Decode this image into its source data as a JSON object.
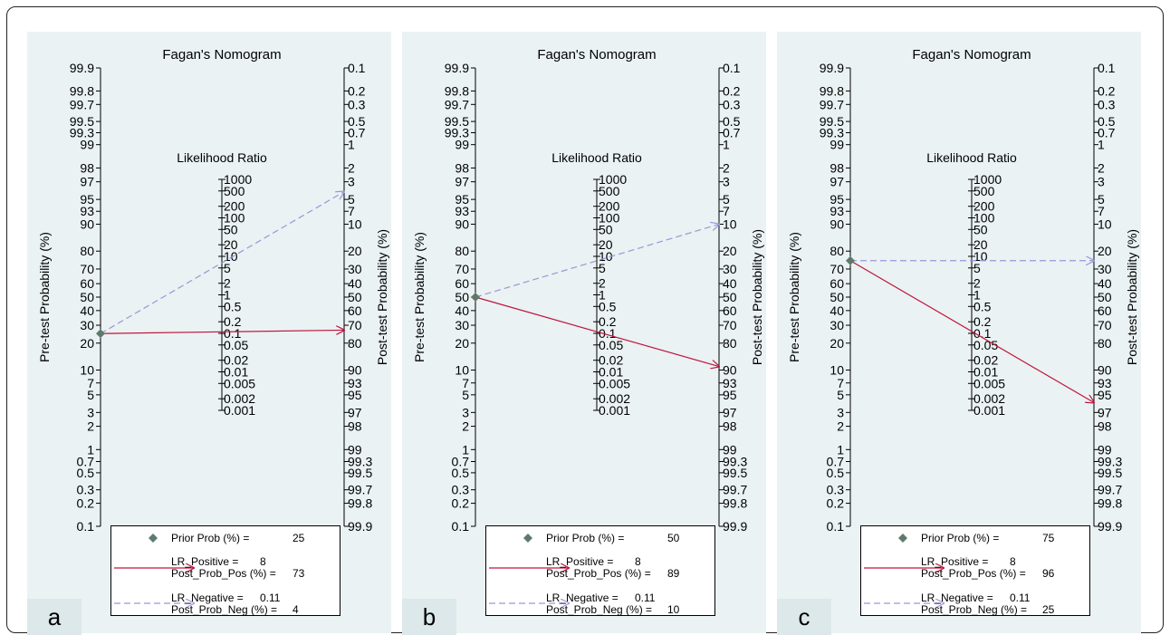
{
  "colors": {
    "background": "#eaf2f3",
    "letter_box": "#dde8eb",
    "positive_line": "#c0143c",
    "negative_line": "#9a96d8",
    "prior_marker": "#5f7a6c",
    "axis": "#000000"
  },
  "panels": [
    {
      "letter": "a",
      "title": "Fagan's Nomogram",
      "legend": {
        "prior_label": "Prior Prob (%) =",
        "prior_value": "25",
        "lr_pos_label": "LR_Positive =",
        "lr_pos_value": "8",
        "post_pos_label": "Post_Prob_Pos (%) =",
        "post_pos_value": "73",
        "lr_neg_label": "LR_Negative =",
        "lr_neg_value": "0.11",
        "post_neg_label": "Post_Prob_Neg (%) =",
        "post_neg_value": "4"
      }
    },
    {
      "letter": "b",
      "title": "Fagan's Nomogram",
      "legend": {
        "prior_label": "Prior Prob (%) =",
        "prior_value": "50",
        "lr_pos_label": "LR_Positive =",
        "lr_pos_value": "8",
        "post_pos_label": "Post_Prob_Pos (%) =",
        "post_pos_value": "89",
        "lr_neg_label": "LR_Negative =",
        "lr_neg_value": "0.11",
        "post_neg_label": "Post_Prob_Neg (%) =",
        "post_neg_value": "10"
      }
    },
    {
      "letter": "c",
      "title": "Fagan's Nomogram",
      "legend": {
        "prior_label": "Prior Prob (%) =",
        "prior_value": "75",
        "lr_pos_label": "LR_Positive =",
        "lr_pos_value": "8",
        "post_pos_label": "Post_Prob_Pos (%) =",
        "post_pos_value": "96",
        "lr_neg_label": "LR_Negative =",
        "lr_neg_value": "0.11",
        "post_neg_label": "Post_Prob_Neg (%) =",
        "post_neg_value": "25"
      }
    }
  ],
  "chart_data": [
    {
      "type": "line",
      "title": "Fagan's Nomogram",
      "pretest_axis_label": "Pre-test Probability (%)",
      "posttest_axis_label": "Post-test Probability (%)",
      "lr_axis_label": "Likelihood Ratio",
      "pretest_ticks": [
        "0.1",
        "0.2",
        "0.3",
        "0.5",
        "0.7",
        "1",
        "2",
        "3",
        "5",
        "7",
        "10",
        "20",
        "30",
        "40",
        "50",
        "60",
        "70",
        "80",
        "90",
        "93",
        "95",
        "97",
        "98",
        "99",
        "99.3",
        "99.5",
        "99.7",
        "99.8",
        "99.9"
      ],
      "posttest_ticks": [
        "99.9",
        "99.8",
        "99.7",
        "99.5",
        "99.3",
        "99",
        "98",
        "97",
        "95",
        "93",
        "90",
        "80",
        "70",
        "60",
        "50",
        "40",
        "30",
        "20",
        "10",
        "7",
        "5",
        "3",
        "2",
        "1",
        "0.7",
        "0.5",
        "0.3",
        "0.2",
        "0.1"
      ],
      "lr_ticks": [
        "1000",
        "500",
        "200",
        "100",
        "50",
        "20",
        "10",
        "5",
        "2",
        "1",
        "0.5",
        "0.2",
        "0.1",
        "0.05",
        "0.02",
        "0.01",
        "0.005",
        "0.002",
        "0.001"
      ],
      "prior_prob": 25,
      "lr_positive": 8,
      "post_prob_pos": 73,
      "lr_negative": 0.11,
      "post_prob_neg": 4
    },
    {
      "type": "line",
      "title": "Fagan's Nomogram",
      "pretest_axis_label": "Pre-test Probability (%)",
      "posttest_axis_label": "Post-test Probability (%)",
      "lr_axis_label": "Likelihood Ratio",
      "pretest_ticks": [
        "0.1",
        "0.2",
        "0.3",
        "0.5",
        "0.7",
        "1",
        "2",
        "3",
        "5",
        "7",
        "10",
        "20",
        "30",
        "40",
        "50",
        "60",
        "70",
        "80",
        "90",
        "93",
        "95",
        "97",
        "98",
        "99",
        "99.3",
        "99.5",
        "99.7",
        "99.8",
        "99.9"
      ],
      "posttest_ticks": [
        "99.9",
        "99.8",
        "99.7",
        "99.5",
        "99.3",
        "99",
        "98",
        "97",
        "95",
        "93",
        "90",
        "80",
        "70",
        "60",
        "50",
        "40",
        "30",
        "20",
        "10",
        "7",
        "5",
        "3",
        "2",
        "1",
        "0.7",
        "0.5",
        "0.3",
        "0.2",
        "0.1"
      ],
      "lr_ticks": [
        "1000",
        "500",
        "200",
        "100",
        "50",
        "20",
        "10",
        "5",
        "2",
        "1",
        "0.5",
        "0.2",
        "0.1",
        "0.05",
        "0.02",
        "0.01",
        "0.005",
        "0.002",
        "0.001"
      ],
      "prior_prob": 50,
      "lr_positive": 8,
      "post_prob_pos": 89,
      "lr_negative": 0.11,
      "post_prob_neg": 10
    },
    {
      "type": "line",
      "title": "Fagan's Nomogram",
      "pretest_axis_label": "Pre-test Probability (%)",
      "posttest_axis_label": "Post-test Probability (%)",
      "lr_axis_label": "Likelihood Ratio",
      "pretest_ticks": [
        "0.1",
        "0.2",
        "0.3",
        "0.5",
        "0.7",
        "1",
        "2",
        "3",
        "5",
        "7",
        "10",
        "20",
        "30",
        "40",
        "50",
        "60",
        "70",
        "80",
        "90",
        "93",
        "95",
        "97",
        "98",
        "99",
        "99.3",
        "99.5",
        "99.7",
        "99.8",
        "99.9"
      ],
      "posttest_ticks": [
        "99.9",
        "99.8",
        "99.7",
        "99.5",
        "99.3",
        "99",
        "98",
        "97",
        "95",
        "93",
        "90",
        "80",
        "70",
        "60",
        "50",
        "40",
        "30",
        "20",
        "10",
        "7",
        "5",
        "3",
        "2",
        "1",
        "0.7",
        "0.5",
        "0.3",
        "0.2",
        "0.1"
      ],
      "lr_ticks": [
        "1000",
        "500",
        "200",
        "100",
        "50",
        "20",
        "10",
        "5",
        "2",
        "1",
        "0.5",
        "0.2",
        "0.1",
        "0.05",
        "0.02",
        "0.01",
        "0.005",
        "0.002",
        "0.001"
      ],
      "prior_prob": 75,
      "lr_positive": 8,
      "post_prob_pos": 96,
      "lr_negative": 0.11,
      "post_prob_neg": 25
    }
  ]
}
